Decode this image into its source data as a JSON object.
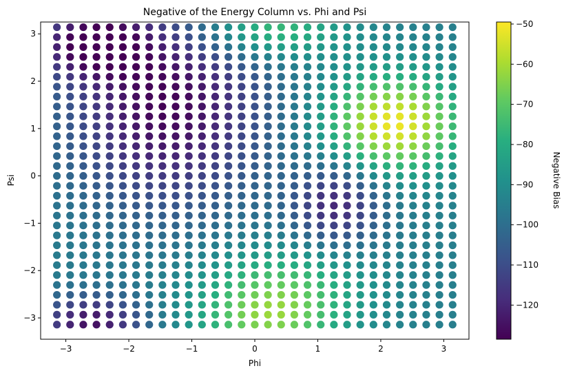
{
  "chart_data": {
    "type": "scatter",
    "title": "Negative of the Energy Column vs. Phi and Psi",
    "xlabel": "Phi",
    "ylabel": "Psi",
    "xlim": [
      -3.4,
      3.4
    ],
    "ylim": [
      -3.45,
      3.25
    ],
    "x_ticks": [
      -3,
      -2,
      -1,
      0,
      1,
      2,
      3
    ],
    "y_ticks": [
      -3,
      -2,
      -1,
      0,
      1,
      2,
      3
    ],
    "x_tick_labels": [
      "−3",
      "−2",
      "−1",
      "0",
      "1",
      "2",
      "3"
    ],
    "y_tick_labels": [
      "−3",
      "−2",
      "−1",
      "0",
      "1",
      "2",
      "3"
    ],
    "grid_x": {
      "start": -3.1416,
      "step": 0.2094,
      "count": 31
    },
    "grid_y": {
      "start": -3.1416,
      "step": 0.2094,
      "count": 31
    },
    "colormap": "viridis",
    "colorbar": {
      "label": "Negative Bias",
      "range": [
        -128.5,
        -49.5
      ],
      "ticks": [
        -120,
        -110,
        -100,
        -90,
        -80,
        -70,
        -60,
        -50
      ],
      "tick_labels": [
        "−120",
        "−110",
        "−100",
        "−90",
        "−80",
        "−70",
        "−60",
        "−50"
      ]
    },
    "value_model": {
      "base": -95,
      "components": [
        {
          "amp": 44,
          "x": 2.2,
          "y": 1.1,
          "sx": 0.75,
          "sy": 0.7
        },
        {
          "amp": 24,
          "x": 0.2,
          "y": 3.1,
          "sx": 0.8,
          "sy": 0.45
        },
        {
          "amp": 24,
          "x": 0.2,
          "y": -3.1,
          "sx": 0.8,
          "sy": 0.45
        },
        {
          "amp": 22,
          "x": 0.4,
          "y": -2.3,
          "sx": 0.9,
          "sy": 0.55
        },
        {
          "amp": -33,
          "x": -1.4,
          "y": 1.5,
          "sx": 1.1,
          "sy": 1.5
        },
        {
          "amp": -30,
          "x": -2.6,
          "y": 2.8,
          "sx": 0.6,
          "sy": 0.5
        },
        {
          "amp": -30,
          "x": -2.6,
          "y": -3.1,
          "sx": 0.6,
          "sy": 0.4
        },
        {
          "amp": -25,
          "x": 1.3,
          "y": -0.6,
          "sx": 0.5,
          "sy": 0.6
        }
      ]
    }
  }
}
